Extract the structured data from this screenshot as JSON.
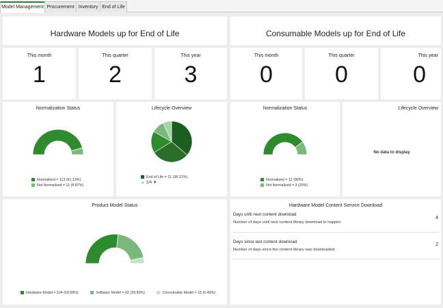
{
  "tabs": [
    {
      "label": "Model Management",
      "active": true
    },
    {
      "label": "Procurement",
      "active": false
    },
    {
      "label": "Inventory",
      "active": false
    },
    {
      "label": "End of Life",
      "active": false
    }
  ],
  "colors": {
    "dark": "#1b5e20",
    "mid": "#2e8b2e",
    "light": "#7cb87c",
    "pale": "#c7e3c7",
    "arrow": "#1a237e"
  },
  "hardware": {
    "title": "Hardware Models up for End of Life",
    "kpis": [
      {
        "label": "This month",
        "value": "1"
      },
      {
        "label": "This quarter",
        "value": "2"
      },
      {
        "label": "This year",
        "value": "3"
      }
    ],
    "normalization": {
      "title": "Normalization Status",
      "legend": [
        "Normalized = 113 (91.13%)",
        "Not Normalized = 11 (8.87%)"
      ],
      "chart_data": {
        "type": "pie",
        "categories": [
          "Normalized",
          "Not Normalized"
        ],
        "values": [
          113,
          11
        ]
      }
    },
    "lifecycle": {
      "title": "Lifecycle Overview",
      "legend": [
        "End of Life = 21 (36.21%)"
      ],
      "pager": "1/4",
      "chart_data": {
        "type": "pie",
        "values": [
          36.21,
          30,
          17,
          10,
          6.79
        ]
      }
    }
  },
  "consumable": {
    "title": "Consumable Models up for End of Life",
    "kpis": [
      {
        "label": "This month",
        "value": "0"
      },
      {
        "label": "This quarter",
        "value": "0"
      },
      {
        "label": "This year",
        "value": "0"
      }
    ],
    "normalization": {
      "title": "Normalization Status",
      "legend": [
        "Normalized = 12 (80%)",
        "Not Normalized = 3 (20%)"
      ],
      "chart_data": {
        "type": "pie",
        "categories": [
          "Normalized",
          "Not Normalized"
        ],
        "values": [
          12,
          3
        ]
      }
    },
    "lifecycle": {
      "title": "Lifecycle Overview",
      "no_data": "No data to display"
    }
  },
  "product_status": {
    "title": "Product Model Status",
    "legend": [
      "Hardware Model = 124 (53.68%)",
      "Software Model = 92 (39.83%)",
      "Consumable Model = 15 (6.49%)"
    ],
    "chart_data": {
      "type": "pie",
      "categories": [
        "Hardware Model",
        "Software Model",
        "Consumable Model"
      ],
      "values": [
        124,
        92,
        15
      ]
    }
  },
  "content_download": {
    "title": "Hardware Model Content Service Download",
    "rows": [
      {
        "title": "Days until next content download",
        "desc": "Number of days until next content library download to happen",
        "value": "4"
      },
      {
        "title": "Days since last content download",
        "desc": "Number of days since the content library was downloaded",
        "value": "2"
      }
    ]
  }
}
